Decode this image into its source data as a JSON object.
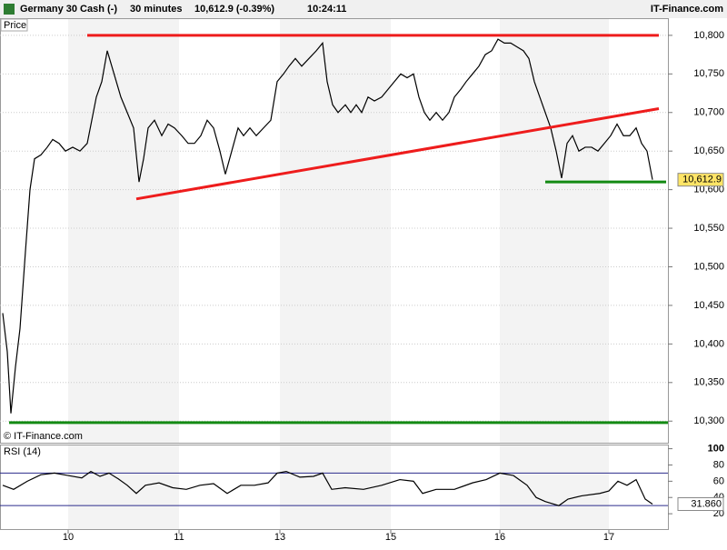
{
  "header": {
    "instrument": "Germany 30 Cash (-)",
    "interval": "30 minutes",
    "quote": "10,612.9 (-0.39%)",
    "time": "10:24:11",
    "brand": "IT-Finance.com"
  },
  "chart_data": [
    {
      "type": "line",
      "title": "Price",
      "copyright": "© IT-Finance.com",
      "x": [
        0.3,
        0.8,
        1.2,
        1.7,
        2.2,
        2.8,
        3.3,
        3.8,
        4.5,
        5.2,
        5.8,
        6.5,
        7.2,
        8,
        8.8,
        9.6,
        10.1,
        10.6,
        11.2,
        11.8,
        12.3,
        12.8,
        13.3,
        14,
        14.7,
        15.3,
        15.8,
        16.3,
        17,
        17.8,
        18.5,
        19.2,
        20,
        20.7,
        21.4,
        22.1,
        22.8,
        23.5,
        24.2,
        24.8,
        25.5,
        26.2,
        26.8,
        27.5,
        28.2,
        29,
        29.8,
        30.5,
        31.2,
        31.8,
        32.5,
        33.2,
        34,
        34.8,
        35.5,
        36,
        36.6,
        37.2,
        38,
        38.6,
        39.2,
        39.8,
        40.5,
        41.2,
        42,
        42.7,
        43.4,
        44.1,
        44.8,
        45.5,
        46.1,
        46.7,
        47.3,
        48,
        48.7,
        49.4,
        50,
        50.7,
        51.3,
        52,
        52.7,
        53.4,
        54.1,
        54.8,
        55.5,
        56.2,
        56.9,
        57.6,
        58.2,
        58.8,
        59.4,
        60,
        60.6,
        61.2,
        61.8,
        62.4,
        63,
        63.7,
        64.4,
        65.1,
        65.8,
        66.5,
        67.2,
        67.9,
        68.6,
        69.3,
        70,
        70.6,
        71.2,
        71.8
      ],
      "series": [
        {
          "color": "#000000",
          "values": [
            10440,
            10390,
            10310,
            10370,
            10420,
            10520,
            10600,
            10640,
            10645,
            10655,
            10665,
            10660,
            10650,
            10655,
            10650,
            10660,
            10690,
            10720,
            10740,
            10780,
            10760,
            10740,
            10720,
            10700,
            10680,
            10610,
            10640,
            10680,
            10690,
            10670,
            10685,
            10680,
            10670,
            10660,
            10660,
            10670,
            10690,
            10680,
            10650,
            10620,
            10650,
            10680,
            10670,
            10680,
            10670,
            10680,
            10690,
            10740,
            10750,
            10760,
            10770,
            10760,
            10770,
            10780,
            10790,
            10740,
            10710,
            10700,
            10710,
            10700,
            10710,
            10700,
            10720,
            10715,
            10720,
            10730,
            10740,
            10750,
            10745,
            10750,
            10720,
            10700,
            10690,
            10700,
            10690,
            10700,
            10720,
            10730,
            10740,
            10750,
            10760,
            10775,
            10780,
            10795,
            10790,
            10790,
            10785,
            10780,
            10770,
            10740,
            10720,
            10700,
            10680,
            10650,
            10615,
            10660,
            10670,
            10650,
            10655,
            10655,
            10650,
            10660,
            10670,
            10685,
            10670,
            10670,
            10680,
            10660,
            10650,
            10612.9
          ]
        }
      ],
      "current": {
        "value": 10612.9,
        "label": "10,612.9"
      },
      "trendlines": [
        {
          "color": "#ee1c1c",
          "x": [
            9.6,
            72.5
          ],
          "y": [
            10800,
            10800
          ]
        },
        {
          "color": "#ee1c1c",
          "x": [
            15,
            72.5
          ],
          "y": [
            10588,
            10705
          ]
        },
        {
          "color": "#138a13",
          "x": [
            60,
            73.3
          ],
          "y": [
            10610,
            10610
          ]
        },
        {
          "color": "#138a13",
          "x": [
            1,
            73.5
          ],
          "y": [
            10298,
            10298
          ]
        }
      ],
      "xlim": [
        0,
        73.5
      ],
      "ylim": [
        10272,
        10814
      ],
      "yticks": [
        {
          "value": 10300,
          "label": "10,300"
        },
        {
          "value": 10350,
          "label": "10,350"
        },
        {
          "value": 10400,
          "label": "10,400"
        },
        {
          "value": 10450,
          "label": "10,450"
        },
        {
          "value": 10500,
          "label": "10,500"
        },
        {
          "value": 10550,
          "label": "10,550"
        },
        {
          "value": 10600,
          "label": "10,600"
        },
        {
          "value": 10650,
          "label": "10,650"
        },
        {
          "value": 10700,
          "label": "10,700"
        },
        {
          "value": 10750,
          "label": "10,750"
        },
        {
          "value": 10800,
          "label": "10,800"
        }
      ],
      "grid": true
    },
    {
      "type": "line",
      "title": "RSI (14)",
      "x": [
        0.3,
        1.5,
        3,
        4.5,
        6,
        7.5,
        9,
        10,
        11,
        12,
        13,
        14,
        15,
        16,
        17.5,
        19,
        20.5,
        22,
        23.5,
        25,
        26.5,
        28,
        29.5,
        30.5,
        31.5,
        33,
        34.5,
        35.5,
        36.5,
        38,
        40,
        42,
        44,
        45.5,
        46.5,
        48,
        50,
        52,
        53.5,
        55,
        56.5,
        58,
        59,
        60,
        61.5,
        62.5,
        64,
        66,
        67,
        68,
        69,
        70,
        71,
        71.8
      ],
      "series": [
        {
          "color": "#000000",
          "values": [
            55,
            50,
            60,
            68,
            70,
            67,
            64,
            72,
            66,
            70,
            63,
            55,
            45,
            55,
            58,
            52,
            50,
            55,
            57,
            45,
            55,
            55,
            58,
            70,
            72,
            65,
            66,
            70,
            50,
            52,
            50,
            55,
            62,
            60,
            45,
            50,
            50,
            58,
            62,
            70,
            67,
            55,
            40,
            35,
            30,
            38,
            42,
            45,
            48,
            60,
            55,
            62,
            38,
            31.86
          ]
        }
      ],
      "current": {
        "value": 31.86,
        "label": "31.860"
      },
      "levels": [
        70,
        30
      ],
      "level_color": "#2b2b8c",
      "xlim": [
        0,
        73.5
      ],
      "ylim": [
        0,
        104
      ],
      "yticks": [
        20,
        40,
        60,
        80,
        100
      ],
      "xticks": [
        {
          "value": 7.5,
          "label": "10"
        },
        {
          "value": 19.7,
          "label": "11"
        },
        {
          "value": 30.8,
          "label": "13"
        },
        {
          "value": 43,
          "label": "15"
        },
        {
          "value": 55,
          "label": "16"
        },
        {
          "value": 67,
          "label": "17"
        }
      ]
    }
  ]
}
